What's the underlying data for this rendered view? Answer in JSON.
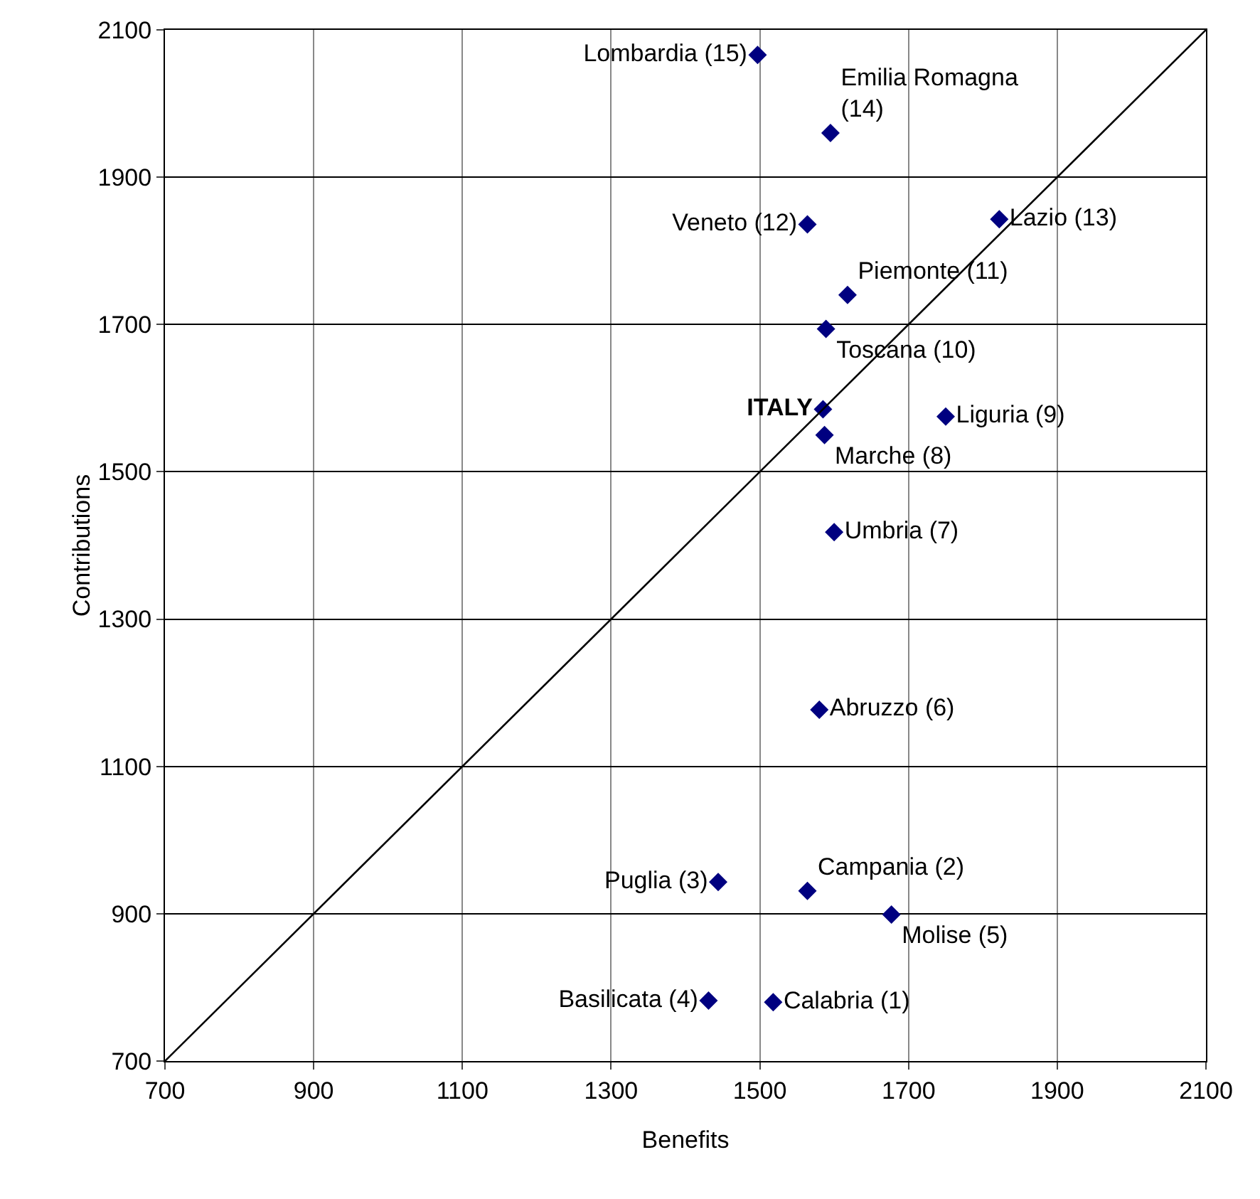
{
  "chart_data": {
    "type": "scatter",
    "xlabel": "Benefits",
    "ylabel": "Contributions",
    "xlim": [
      700,
      2100
    ],
    "xticks": [
      700,
      900,
      1100,
      1300,
      1500,
      1700,
      1900,
      2100
    ],
    "ylim": [
      700,
      2100
    ],
    "yticks": [
      700,
      900,
      1100,
      1300,
      1500,
      1700,
      1900,
      2100
    ],
    "grid": true,
    "legend": false,
    "marker": "diamond",
    "series": [
      {
        "name": "Calabria (1)",
        "color": "#000080",
        "x": [
          1518
        ],
        "values": [
          780
        ]
      },
      {
        "name": "Campania (2)",
        "color": "#000080",
        "x": [
          1564
        ],
        "values": [
          931
        ]
      },
      {
        "name": "Puglia (3)",
        "color": "#000080",
        "x": [
          1444
        ],
        "values": [
          943
        ]
      },
      {
        "name": "Basilicata (4)",
        "color": "#000080",
        "x": [
          1431
        ],
        "values": [
          782
        ]
      },
      {
        "name": "Molise (5)",
        "color": "#000080",
        "x": [
          1677
        ],
        "values": [
          899
        ]
      },
      {
        "name": "Abruzzo (6)",
        "color": "#000080",
        "x": [
          1580
        ],
        "values": [
          1177
        ]
      },
      {
        "name": "Umbria (7)",
        "color": "#000080",
        "x": [
          1600
        ],
        "values": [
          1418
        ]
      },
      {
        "name": "Marche (8)",
        "color": "#000080",
        "x": [
          1587
        ],
        "values": [
          1550
        ]
      },
      {
        "name": "Liguria (9)",
        "color": "#000080",
        "x": [
          1750
        ],
        "values": [
          1575
        ]
      },
      {
        "name": "Toscana (10)",
        "color": "#000080",
        "x": [
          1589
        ],
        "values": [
          1694
        ]
      },
      {
        "name": "Piemonte (11)",
        "color": "#000080",
        "x": [
          1618
        ],
        "values": [
          1740
        ]
      },
      {
        "name": "Veneto (12)",
        "color": "#000080",
        "x": [
          1564
        ],
        "values": [
          1836
        ]
      },
      {
        "name": "Lazio (13)",
        "color": "#000080",
        "x": [
          1822
        ],
        "values": [
          1843
        ]
      },
      {
        "name": "Emilia Romagna\n(14)",
        "color": "#000080",
        "x": [
          1595
        ],
        "values": [
          1960
        ]
      },
      {
        "name": "Lombardia (15)",
        "color": "#000080",
        "x": [
          1497
        ],
        "values": [
          2066
        ]
      },
      {
        "name": "ITALY",
        "color": "#000080",
        "x": [
          1585
        ],
        "values": [
          1585
        ]
      },
      {
        "type": "line",
        "marker": "none",
        "color": "#000000",
        "x": [
          700,
          2100
        ],
        "values": [
          700,
          2100
        ]
      }
    ]
  }
}
